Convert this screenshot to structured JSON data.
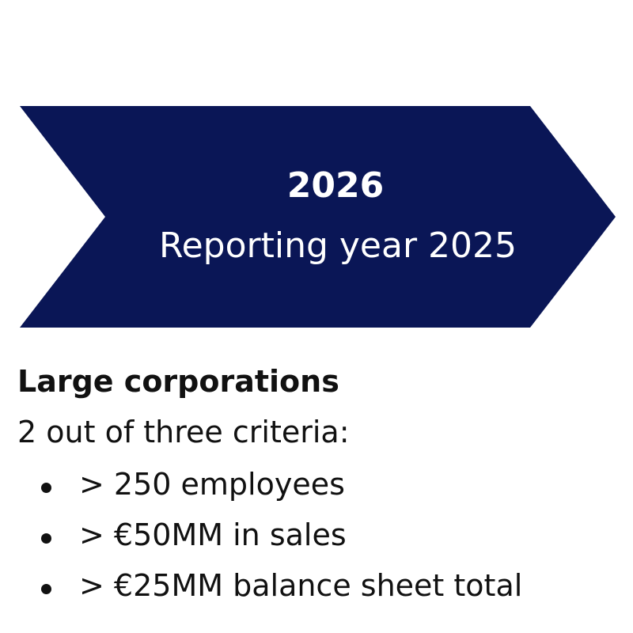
{
  "arrow": {
    "title": "2026",
    "subtitle": "Reporting year 2025"
  },
  "section": {
    "heading": "Large corporations",
    "intro": "2 out of three criteria:",
    "items": [
      "> 250 employees",
      "> €50MM in sales",
      "> €25MM balance sheet total"
    ]
  }
}
